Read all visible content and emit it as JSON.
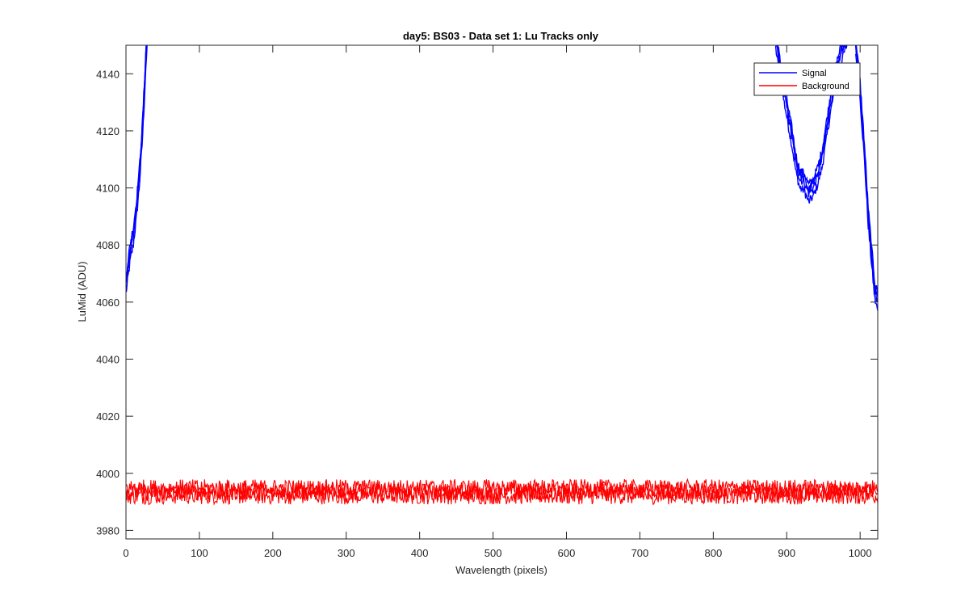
{
  "chart_data": {
    "type": "line",
    "title": "day5: BS03 - Data set 1: Lu Tracks only",
    "xlabel": "Wavelength (pixels)",
    "ylabel": "LuMid (ADU)",
    "xlim": [
      0,
      1024
    ],
    "ylim": [
      3977,
      4150
    ],
    "xticks": [
      0,
      100,
      200,
      300,
      400,
      500,
      600,
      700,
      800,
      900,
      1000
    ],
    "yticks": [
      3980,
      4000,
      4020,
      4040,
      4060,
      4080,
      4100,
      4120,
      4140
    ],
    "grid": false,
    "legend_position": "top-right",
    "series": [
      {
        "name": "Signal",
        "color": "#0000ff",
        "x": [
          0,
          3,
          6,
          10,
          14,
          18,
          22,
          25,
          27,
          29,
          30,
          null,
          885,
          893,
          900,
          907,
          913,
          918,
          924,
          930,
          936,
          942,
          948,
          954,
          960,
          968,
          975,
          982,
          null,
          994,
          1000,
          1006,
          1011,
          1016,
          1020,
          1024
        ],
        "y": [
          4066,
          4072,
          4078,
          4083,
          4092,
          4103,
          4118,
          4133,
          4145,
          4153,
          4160,
          null,
          4152,
          4138,
          4128,
          4118,
          4108,
          4103,
          4102,
          4098,
          4100,
          4104,
          4110,
          4120,
          4130,
          4141,
          4148,
          4153,
          null,
          4150,
          4134,
          4112,
          4090,
          4075,
          4064,
          4060
        ]
      },
      {
        "name": "Background",
        "color": "#ff0000",
        "x": [
          0,
          1024
        ],
        "y": [
          3993.5,
          3993.5
        ],
        "spread": [
          3988,
          3999
        ]
      }
    ]
  }
}
